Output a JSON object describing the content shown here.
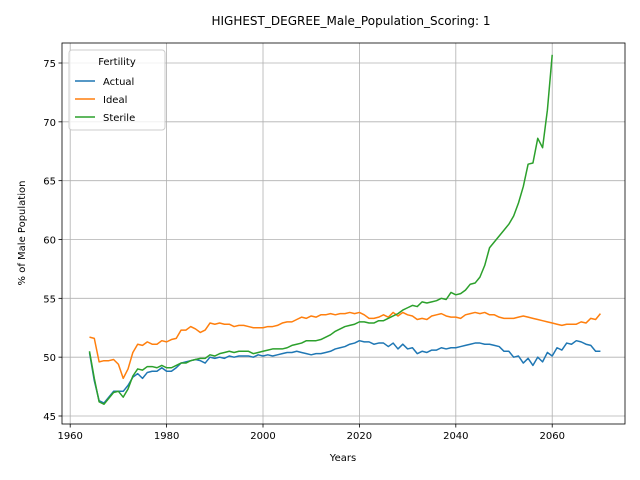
{
  "chart_data": {
    "type": "line",
    "title": "HIGHEST_DEGREE_Male_Population_Scoring: 1",
    "x_label": "Years",
    "y_label": "% of Male Population",
    "legend_title": "Fertility",
    "legend_loc": "upper left",
    "grid": true,
    "xlim": [
      1958.3,
      2075.1
    ],
    "ylim": [
      44.32,
      76.7
    ],
    "xticks": [
      1960,
      1980,
      2000,
      2020,
      2040,
      2060
    ],
    "yticks": [
      45,
      50,
      55,
      60,
      65,
      70,
      75
    ],
    "x": [
      1964,
      1965,
      1966,
      1967,
      1968,
      1969,
      1970,
      1971,
      1972,
      1973,
      1974,
      1975,
      1976,
      1977,
      1978,
      1979,
      1980,
      1981,
      1982,
      1983,
      1984,
      1985,
      1986,
      1987,
      1988,
      1989,
      1990,
      1991,
      1992,
      1993,
      1994,
      1995,
      1996,
      1997,
      1998,
      1999,
      2000,
      2001,
      2002,
      2003,
      2004,
      2005,
      2006,
      2007,
      2008,
      2009,
      2010,
      2011,
      2012,
      2013,
      2014,
      2015,
      2016,
      2017,
      2018,
      2019,
      2020,
      2021,
      2022,
      2023,
      2024,
      2025,
      2026,
      2027,
      2028,
      2029,
      2030,
      2031,
      2032,
      2033,
      2034,
      2035,
      2036,
      2037,
      2038,
      2039,
      2040,
      2041,
      2042,
      2043,
      2044,
      2045,
      2046,
      2047,
      2048,
      2049,
      2050,
      2051,
      2052,
      2053,
      2054,
      2055,
      2056,
      2057,
      2058,
      2059,
      2060,
      2061,
      2062,
      2063,
      2064,
      2065,
      2066,
      2067,
      2068,
      2069,
      2070
    ],
    "series": [
      {
        "name": "Actual",
        "color": "#1f77b4",
        "values": [
          50.4,
          48.0,
          46.3,
          46.1,
          46.6,
          47.1,
          47.1,
          47.1,
          47.6,
          48.3,
          48.6,
          48.2,
          48.7,
          48.8,
          48.8,
          49.1,
          48.8,
          48.8,
          49.1,
          49.5,
          49.6,
          49.7,
          49.8,
          49.7,
          49.5,
          50.0,
          49.9,
          50.0,
          49.9,
          50.1,
          50.0,
          50.1,
          50.1,
          50.1,
          50.0,
          50.2,
          50.1,
          50.2,
          50.1,
          50.2,
          50.3,
          50.4,
          50.4,
          50.5,
          50.4,
          50.3,
          50.2,
          50.3,
          50.3,
          50.4,
          50.5,
          50.7,
          50.8,
          50.9,
          51.1,
          51.2,
          51.4,
          51.3,
          51.3,
          51.1,
          51.2,
          51.2,
          50.9,
          51.2,
          50.7,
          51.1,
          50.7,
          50.8,
          50.3,
          50.5,
          50.4,
          50.6,
          50.6,
          50.8,
          50.7,
          50.8,
          50.8,
          50.9,
          51.0,
          51.1,
          51.2,
          51.2,
          51.1,
          51.1,
          51.0,
          50.9,
          50.5,
          50.5,
          50.0,
          50.1,
          49.5,
          49.9,
          49.3,
          50.0,
          49.6,
          50.4,
          50.1,
          50.8,
          50.6,
          51.2,
          51.1,
          51.4,
          51.3,
          51.1,
          51.0,
          50.5,
          50.5
        ]
      },
      {
        "name": "Ideal",
        "color": "#ff7f0e",
        "values": [
          51.7,
          51.6,
          49.6,
          49.7,
          49.7,
          49.8,
          49.4,
          48.2,
          49.0,
          50.4,
          51.1,
          51.0,
          51.3,
          51.1,
          51.1,
          51.4,
          51.3,
          51.5,
          51.6,
          52.3,
          52.3,
          52.6,
          52.4,
          52.1,
          52.3,
          52.9,
          52.8,
          52.9,
          52.8,
          52.8,
          52.6,
          52.7,
          52.7,
          52.6,
          52.5,
          52.5,
          52.5,
          52.6,
          52.6,
          52.7,
          52.9,
          53.0,
          53.0,
          53.2,
          53.4,
          53.3,
          53.5,
          53.4,
          53.6,
          53.6,
          53.7,
          53.6,
          53.7,
          53.7,
          53.8,
          53.7,
          53.8,
          53.6,
          53.3,
          53.3,
          53.4,
          53.6,
          53.4,
          53.8,
          53.5,
          53.8,
          53.6,
          53.5,
          53.2,
          53.3,
          53.2,
          53.5,
          53.6,
          53.7,
          53.5,
          53.4,
          53.4,
          53.3,
          53.6,
          53.7,
          53.8,
          53.7,
          53.8,
          53.6,
          53.6,
          53.4,
          53.3,
          53.3,
          53.3,
          53.4,
          53.5,
          53.4,
          53.3,
          53.2,
          53.1,
          53.0,
          52.9,
          52.8,
          52.7,
          52.8,
          52.8,
          52.8,
          53.0,
          52.9,
          53.3,
          53.2,
          53.7
        ]
      },
      {
        "name": "Sterile",
        "color": "#2ca02c",
        "values": [
          50.5,
          48.2,
          46.2,
          46.0,
          46.5,
          47.0,
          47.1,
          46.6,
          47.3,
          48.4,
          49.0,
          48.9,
          49.2,
          49.2,
          49.1,
          49.3,
          49.1,
          49.1,
          49.3,
          49.5,
          49.5,
          49.7,
          49.8,
          49.9,
          49.9,
          50.2,
          50.1,
          50.3,
          50.4,
          50.5,
          50.4,
          50.5,
          50.5,
          50.5,
          50.3,
          50.4,
          50.5,
          50.6,
          50.7,
          50.7,
          50.7,
          50.8,
          51.0,
          51.1,
          51.2,
          51.4,
          51.4,
          51.4,
          51.5,
          51.7,
          51.9,
          52.2,
          52.4,
          52.6,
          52.7,
          52.8,
          53.0,
          53.0,
          52.9,
          52.9,
          53.1,
          53.1,
          53.3,
          53.5,
          53.7,
          54.0,
          54.2,
          54.4,
          54.3,
          54.7,
          54.6,
          54.7,
          54.8,
          55.0,
          54.9,
          55.5,
          55.3,
          55.4,
          55.7,
          56.2,
          56.3,
          56.8,
          57.8,
          59.3,
          59.8,
          60.3,
          60.8,
          61.3,
          62.0,
          63.1,
          64.5,
          66.4,
          66.5,
          68.6,
          67.8,
          71.0,
          75.7,
          null,
          null,
          null,
          null,
          null,
          null,
          null,
          null,
          null,
          null
        ]
      }
    ]
  }
}
